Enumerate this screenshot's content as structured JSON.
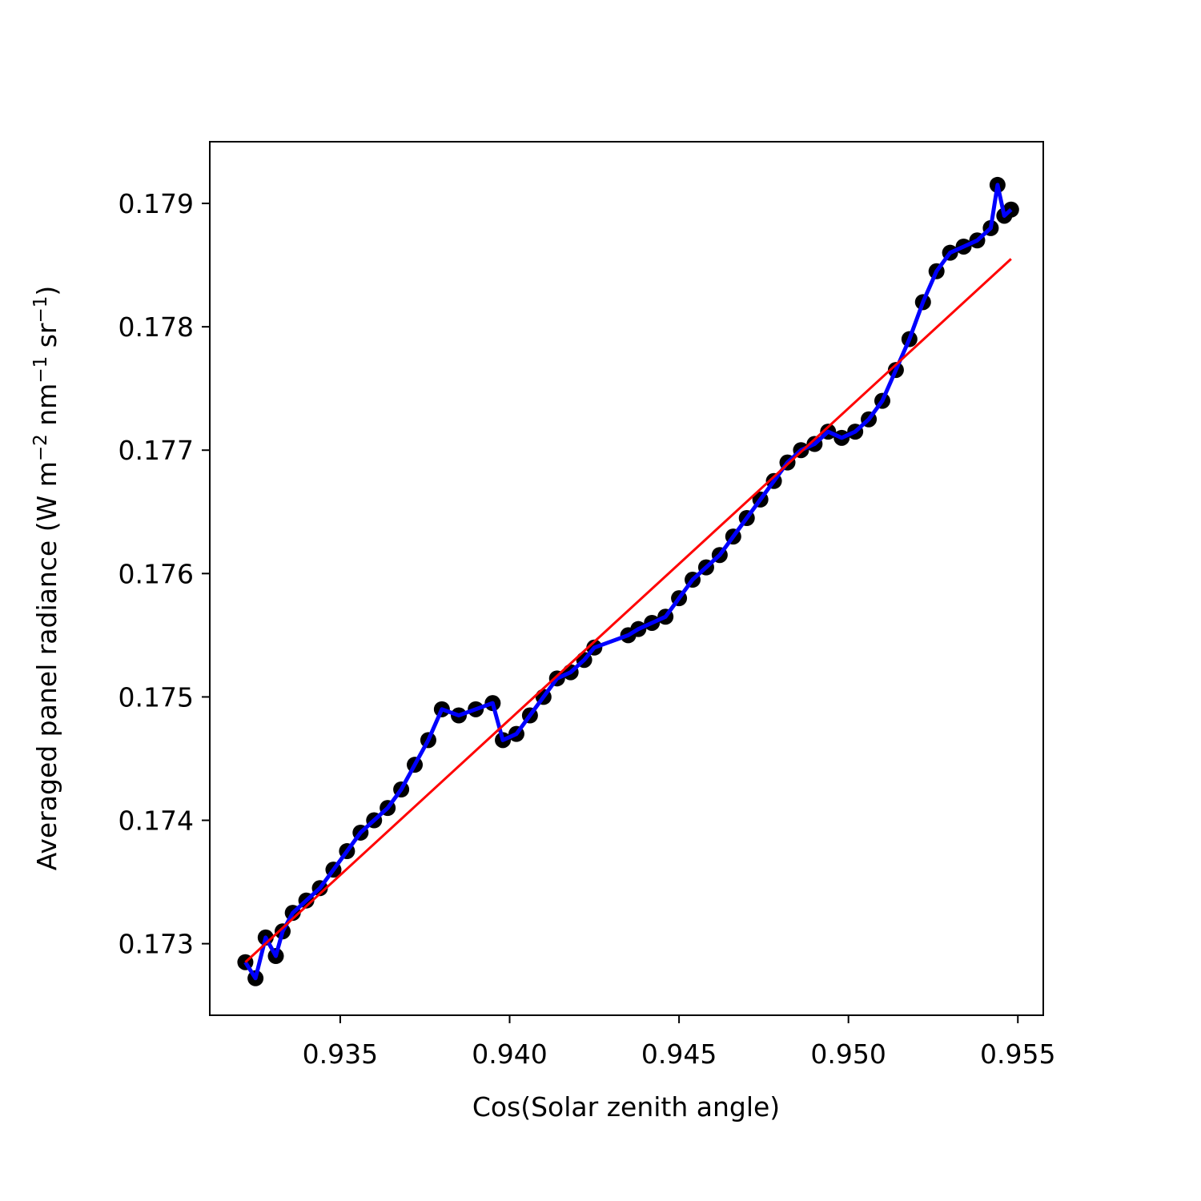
{
  "chart_data": {
    "type": "scatter",
    "xlabel": "Cos(Solar zenith angle)",
    "ylabel": "Averaged panel radiance (W m",
    "ylabel_unit_parts": [
      "−2",
      " nm",
      "−1",
      " sr",
      "−1",
      ")"
    ],
    "xlim": [
      0.93115,
      0.95575
    ],
    "ylim": [
      0.17242,
      0.1795
    ],
    "x_ticks": [
      0.935,
      0.94,
      0.945,
      0.95,
      0.955
    ],
    "x_tick_labels": [
      "0.935",
      "0.940",
      "0.945",
      "0.950",
      "0.955"
    ],
    "y_ticks": [
      0.173,
      0.174,
      0.175,
      0.176,
      0.177,
      0.178,
      0.179
    ],
    "y_tick_labels": [
      "0.173",
      "0.174",
      "0.175",
      "0.176",
      "0.177",
      "0.178",
      "0.179"
    ],
    "grid": false,
    "colors": {
      "markers": "#000000",
      "connecting_line": "#0000ff",
      "fit_line": "#ff0000"
    },
    "series": [
      {
        "marker": "o",
        "x": [
          0.9322,
          0.9325,
          0.9328,
          0.9331,
          0.9333,
          0.9336,
          0.934,
          0.9344,
          0.9348,
          0.9352,
          0.9356,
          0.936,
          0.9364,
          0.9368,
          0.9372,
          0.9376,
          0.938,
          0.9385,
          0.939,
          0.9395,
          0.9398,
          0.9402,
          0.9406,
          0.941,
          0.9414,
          0.9418,
          0.9422,
          0.9425,
          0.9435,
          0.9438,
          0.9442,
          0.9446,
          0.945,
          0.9454,
          0.9458,
          0.9462,
          0.9466,
          0.947,
          0.9474,
          0.9478,
          0.9482,
          0.9486,
          0.949,
          0.9494,
          0.9498,
          0.9502,
          0.9506,
          0.951,
          0.9514,
          0.9518,
          0.9522,
          0.9526,
          0.953,
          0.9534,
          0.9538,
          0.9542,
          0.9544,
          0.9546,
          0.9548
        ],
        "y": [
          0.17285,
          0.17272,
          0.17305,
          0.1729,
          0.1731,
          0.17325,
          0.17335,
          0.17345,
          0.1736,
          0.17375,
          0.1739,
          0.174,
          0.1741,
          0.17425,
          0.17445,
          0.17465,
          0.1749,
          0.17485,
          0.1749,
          0.17495,
          0.17465,
          0.1747,
          0.17485,
          0.175,
          0.17515,
          0.1752,
          0.1753,
          0.1754,
          0.1755,
          0.17555,
          0.1756,
          0.17565,
          0.1758,
          0.17595,
          0.17605,
          0.17615,
          0.1763,
          0.17645,
          0.1766,
          0.17675,
          0.1769,
          0.177,
          0.17705,
          0.17715,
          0.1771,
          0.17715,
          0.17725,
          0.1774,
          0.17765,
          0.1779,
          0.1782,
          0.17845,
          0.1786,
          0.17865,
          0.1787,
          0.1788,
          0.17915,
          0.1789,
          0.17895
        ]
      },
      {
        "marker": "line",
        "x": [
          0.9322,
          0.9548
        ],
        "y": [
          0.17285,
          0.17855
        ]
      }
    ]
  }
}
